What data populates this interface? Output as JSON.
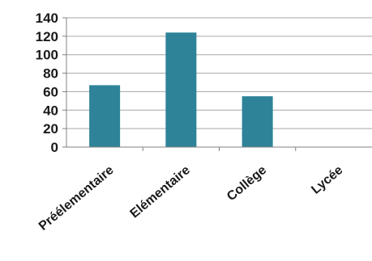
{
  "chart_data": {
    "type": "bar",
    "categories": [
      "Préélementaire",
      "Elémentaire",
      "Collège",
      "Lycée"
    ],
    "values": [
      67,
      124,
      55,
      0
    ],
    "ylim": [
      0,
      140
    ],
    "yticks": [
      "0",
      "20",
      "40",
      "60",
      "80",
      "100",
      "120",
      "140"
    ],
    "grid": true,
    "bar_color": "#2e8399",
    "grid_color": "#a6a6a6",
    "axis_color": "#808080"
  }
}
